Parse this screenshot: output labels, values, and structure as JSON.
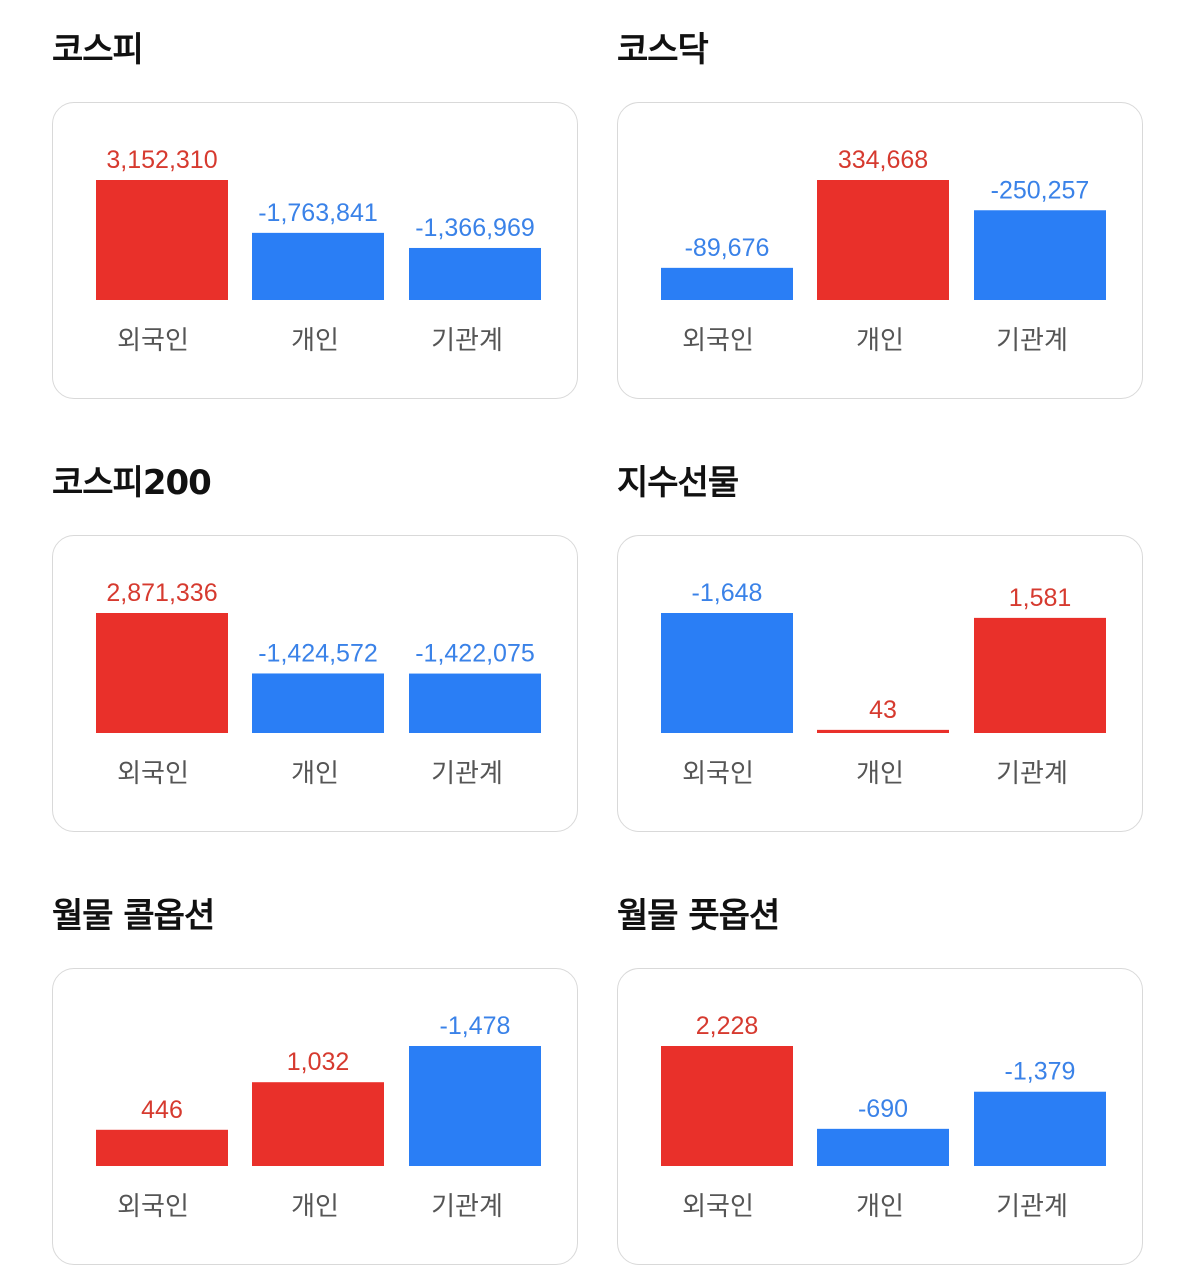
{
  "colors": {
    "positive": "#e9302a",
    "negative": "#2a7ef5",
    "positive_text": "#d63a2f",
    "negative_text": "#3a82e8"
  },
  "chart_data": [
    {
      "type": "bar",
      "title": "코스피",
      "categories": [
        "외국인",
        "개인",
        "기관계"
      ],
      "values": [
        3152310,
        -1763841,
        -1366969
      ],
      "value_labels": [
        "3,152,310",
        "-1,763,841",
        "-1,366,969"
      ]
    },
    {
      "type": "bar",
      "title": "코스닥",
      "categories": [
        "외국인",
        "개인",
        "기관계"
      ],
      "values": [
        -89676,
        334668,
        -250257
      ],
      "value_labels": [
        "-89,676",
        "334,668",
        "-250,257"
      ]
    },
    {
      "type": "bar",
      "title": "코스피200",
      "categories": [
        "외국인",
        "개인",
        "기관계"
      ],
      "values": [
        2871336,
        -1424572,
        -1422075
      ],
      "value_labels": [
        "2,871,336",
        "-1,424,572",
        "-1,422,075"
      ]
    },
    {
      "type": "bar",
      "title": "지수선물",
      "categories": [
        "외국인",
        "개인",
        "기관계"
      ],
      "values": [
        -1648,
        43,
        1581
      ],
      "value_labels": [
        "-1,648",
        "43",
        "1,581"
      ]
    },
    {
      "type": "bar",
      "title": "월물 콜옵션",
      "categories": [
        "외국인",
        "개인",
        "기관계"
      ],
      "values": [
        446,
        1032,
        -1478
      ],
      "value_labels": [
        "446",
        "1,032",
        "-1,478"
      ]
    },
    {
      "type": "bar",
      "title": "월물 풋옵션",
      "categories": [
        "외국인",
        "개인",
        "기관계"
      ],
      "values": [
        2228,
        -690,
        -1379
      ],
      "value_labels": [
        "2,228",
        "-690",
        "-1,379"
      ]
    }
  ]
}
